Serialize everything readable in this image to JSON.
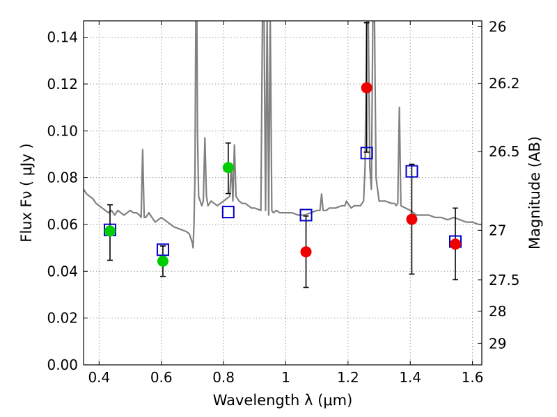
{
  "chart_data": {
    "type": "scatter",
    "xlabel": "Wavelength  λ (μm)",
    "ylabel": "Flux  Fν  ( μJy )",
    "y2label": "Magnitude (AB)",
    "xlim": [
      0.35,
      1.63
    ],
    "ylim": [
      0.0,
      0.147
    ],
    "xticks": [
      0.4,
      0.6,
      0.8,
      1.0,
      1.2,
      1.4,
      1.6
    ],
    "xtick_labels": [
      "0.4",
      "0.6",
      "0.8",
      "1",
      "1.2",
      "1.4",
      "1.6"
    ],
    "yticks": [
      0.0,
      0.02,
      0.04,
      0.06,
      0.08,
      0.1,
      0.12,
      0.14
    ],
    "ytick_labels": [
      "0.00",
      "0.02",
      "0.04",
      "0.06",
      "0.08",
      "0.10",
      "0.12",
      "0.14"
    ],
    "y2ticks": [
      {
        "label": "26",
        "flux": 0.1445
      },
      {
        "label": "26.2",
        "flux": 0.1202
      },
      {
        "label": "26.5",
        "flux": 0.0912
      },
      {
        "label": "27",
        "flux": 0.0575
      },
      {
        "label": "27.5",
        "flux": 0.0363
      },
      {
        "label": "28",
        "flux": 0.0229
      },
      {
        "label": "29",
        "flux": 0.0091
      }
    ],
    "grid": true,
    "colors": {
      "spectrum": "#808080",
      "green": "#00cc00",
      "red": "#ee0000",
      "model": "#0000cc",
      "errorbar": "#000000",
      "grid": "#9a9a9a"
    },
    "series": [
      {
        "marker": "line",
        "x": [
          0.35,
          0.36,
          0.37,
          0.38,
          0.39,
          0.4,
          0.41,
          0.42,
          0.43,
          0.44,
          0.45,
          0.46,
          0.47,
          0.48,
          0.49,
          0.5,
          0.51,
          0.52,
          0.53,
          0.535,
          0.54,
          0.545,
          0.55,
          0.56,
          0.57,
          0.58,
          0.59,
          0.6,
          0.62,
          0.64,
          0.66,
          0.68,
          0.69,
          0.7,
          0.702,
          0.705,
          0.708,
          0.711,
          0.714,
          0.716,
          0.72,
          0.73,
          0.735,
          0.74,
          0.745,
          0.75,
          0.76,
          0.77,
          0.78,
          0.79,
          0.8,
          0.81,
          0.82,
          0.825,
          0.83,
          0.835,
          0.84,
          0.85,
          0.86,
          0.87,
          0.88,
          0.89,
          0.9,
          0.92,
          0.925,
          0.93,
          0.935,
          0.94,
          0.945,
          0.95,
          0.955,
          0.96,
          0.97,
          0.98,
          1.0,
          1.02,
          1.04,
          1.06,
          1.08,
          1.1,
          1.11,
          1.115,
          1.12,
          1.13,
          1.14,
          1.16,
          1.18,
          1.19,
          1.195,
          1.2,
          1.21,
          1.22,
          1.24,
          1.25,
          1.255,
          1.26,
          1.265,
          1.27,
          1.275,
          1.28,
          1.285,
          1.29,
          1.3,
          1.32,
          1.34,
          1.35,
          1.355,
          1.36,
          1.365,
          1.37,
          1.4,
          1.42,
          1.44,
          1.46,
          1.48,
          1.5,
          1.52,
          1.54,
          1.56,
          1.58,
          1.6,
          1.62,
          1.63
        ],
        "y": [
          0.075,
          0.073,
          0.072,
          0.071,
          0.069,
          0.068,
          0.067,
          0.066,
          0.065,
          0.066,
          0.064,
          0.066,
          0.065,
          0.064,
          0.065,
          0.066,
          0.065,
          0.065,
          0.064,
          0.063,
          0.092,
          0.063,
          0.063,
          0.065,
          0.063,
          0.061,
          0.062,
          0.063,
          0.061,
          0.059,
          0.058,
          0.057,
          0.056,
          0.052,
          0.05,
          0.06,
          0.08,
          0.15,
          0.15,
          0.1,
          0.072,
          0.068,
          0.07,
          0.097,
          0.072,
          0.068,
          0.07,
          0.069,
          0.068,
          0.069,
          0.07,
          0.071,
          0.072,
          0.086,
          0.07,
          0.094,
          0.072,
          0.07,
          0.069,
          0.069,
          0.068,
          0.067,
          0.067,
          0.066,
          0.15,
          0.15,
          0.066,
          0.15,
          0.064,
          0.15,
          0.066,
          0.065,
          0.066,
          0.065,
          0.065,
          0.065,
          0.064,
          0.064,
          0.065,
          0.066,
          0.066,
          0.073,
          0.066,
          0.066,
          0.067,
          0.067,
          0.068,
          0.068,
          0.07,
          0.069,
          0.067,
          0.068,
          0.068,
          0.07,
          0.085,
          0.15,
          0.15,
          0.085,
          0.075,
          0.15,
          0.15,
          0.08,
          0.07,
          0.07,
          0.069,
          0.069,
          0.068,
          0.069,
          0.11,
          0.068,
          0.066,
          0.064,
          0.064,
          0.064,
          0.063,
          0.063,
          0.062,
          0.063,
          0.062,
          0.061,
          0.061,
          0.06,
          0.06
        ]
      },
      {
        "marker": "circle",
        "x": [
          0.435,
          0.605,
          0.815
        ],
        "y": [
          0.0572,
          0.0443,
          0.0843
        ],
        "yerr_low": [
          0.0447,
          0.0378,
          0.0732
        ],
        "yerr_high": [
          0.0684,
          0.0508,
          0.0948
        ]
      },
      {
        "marker": "circle",
        "x": [
          1.065,
          1.26,
          1.405,
          1.545
        ],
        "y": [
          0.0483,
          0.1184,
          0.0622,
          0.0516
        ],
        "yerr_low": [
          0.0331,
          0.0909,
          0.0388,
          0.0364
        ],
        "yerr_high": [
          0.0636,
          0.1462,
          0.0857,
          0.067
        ]
      },
      {
        "marker": "square",
        "x": [
          0.435,
          0.605,
          0.815,
          1.065,
          1.26,
          1.405,
          1.545
        ],
        "y": [
          0.0577,
          0.0492,
          0.0653,
          0.064,
          0.0905,
          0.0827,
          0.0527
        ]
      }
    ]
  }
}
